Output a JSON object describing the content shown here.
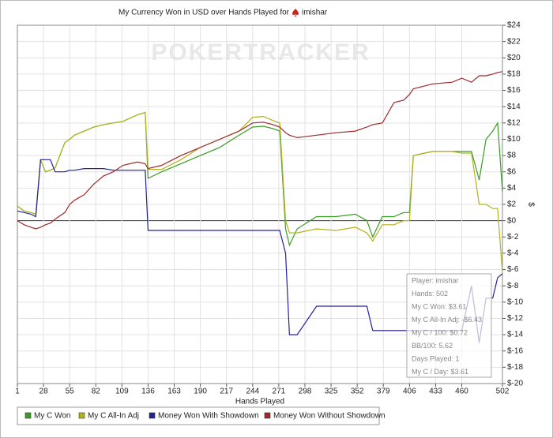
{
  "chart_data": {
    "type": "line",
    "title": "My Currency Won in USD over Hands Played for",
    "title_player": "imishar",
    "watermark": "POKERTRACKER",
    "xlabel": "Hands Played",
    "ylabel": "$",
    "x": [
      1,
      8,
      15,
      20,
      25,
      30,
      35,
      40,
      50,
      55,
      60,
      70,
      80,
      90,
      100,
      110,
      125,
      133,
      136,
      150,
      170,
      190,
      210,
      230,
      244,
      255,
      265,
      272,
      278,
      282,
      290,
      310,
      330,
      350,
      362,
      368,
      378,
      390,
      400,
      406,
      410,
      430,
      450,
      460,
      470,
      478,
      485,
      492,
      497,
      502
    ],
    "series": [
      {
        "name": "My C Won",
        "color": "#3a9d23",
        "values": [
          1.8,
          1.2,
          1.0,
          0.8,
          7.5,
          6.0,
          6.2,
          6.5,
          9.6,
          10,
          10.5,
          11,
          11.5,
          11.8,
          12,
          12.2,
          13,
          13.3,
          5.2,
          6,
          7,
          8,
          9,
          10.5,
          11.5,
          11.6,
          11.3,
          11,
          -1,
          -3,
          -1,
          0.5,
          0.5,
          0.8,
          0,
          -2,
          0.5,
          0.5,
          1,
          1,
          8,
          8.5,
          8.5,
          8.5,
          8.5,
          5,
          10,
          11,
          12,
          3.6
        ]
      },
      {
        "name": "My C All-In Adj",
        "color": "#b3b21a",
        "values": [
          1.8,
          1.2,
          1.0,
          0.8,
          7.5,
          6.0,
          6.2,
          6.5,
          9.6,
          10,
          10.5,
          11,
          11.5,
          11.8,
          12,
          12.2,
          13,
          13.3,
          6.3,
          6.3,
          7.5,
          9,
          10,
          11,
          12.7,
          12.8,
          12.3,
          12,
          0,
          -1.5,
          -1.5,
          -1,
          -1.2,
          -0.8,
          -1.5,
          -2.5,
          -0.5,
          -0.5,
          0,
          0,
          8,
          8.5,
          8.5,
          8.3,
          8.3,
          2,
          2,
          1.5,
          1.5,
          -6.4
        ]
      },
      {
        "name": "Money Won With Showdown",
        "color": "#22229a",
        "values": [
          1.2,
          1,
          0.8,
          0.5,
          7.5,
          7.5,
          7.5,
          6,
          6,
          6.2,
          6.2,
          6.4,
          6.4,
          6.4,
          6.2,
          6.2,
          6.2,
          6.2,
          -1.2,
          -1.2,
          -1.2,
          -1.2,
          -1.2,
          -1.2,
          -1.2,
          -1.2,
          -1.2,
          -1.2,
          -4,
          -14,
          -14,
          -10.5,
          -10.5,
          -10.5,
          -10.5,
          -13.5,
          -13.5,
          -13.5,
          -13.5,
          -13.5,
          -13.5,
          -13.5,
          -13.5,
          -13.5,
          -8,
          -15,
          -9.5,
          -9.5,
          -7,
          -6.5
        ]
      },
      {
        "name": "Money Won Without Showdown",
        "color": "#a02a2a",
        "values": [
          0,
          -0.5,
          -0.8,
          -1,
          -0.8,
          -0.5,
          -0.3,
          0.2,
          1,
          2,
          2.5,
          3.2,
          4.5,
          5.5,
          6,
          6.8,
          7.2,
          7,
          6.4,
          6.8,
          8,
          9,
          10,
          11,
          12,
          12.1,
          11.8,
          11.5,
          10.8,
          10.5,
          10.2,
          10.5,
          10.8,
          11,
          11.5,
          11.8,
          12,
          14.5,
          14.8,
          15.5,
          16.2,
          16.8,
          17,
          17.5,
          17,
          17.8,
          17.8,
          18,
          18.2,
          18.3
        ]
      }
    ],
    "xlim": [
      1,
      502
    ],
    "xticks": [
      1,
      28,
      55,
      82,
      109,
      136,
      163,
      190,
      217,
      244,
      271,
      298,
      325,
      352,
      379,
      406,
      433,
      460,
      502
    ],
    "ylim": [
      -20,
      24
    ],
    "yticks": [
      {
        "value": 24,
        "label": "$24"
      },
      {
        "value": 22,
        "label": "$22"
      },
      {
        "value": 20,
        "label": "$20"
      },
      {
        "value": 18,
        "label": "$18"
      },
      {
        "value": 16,
        "label": "$16"
      },
      {
        "value": 14,
        "label": "$14"
      },
      {
        "value": 12,
        "label": "$12"
      },
      {
        "value": 10,
        "label": "$10"
      },
      {
        "value": 8,
        "label": "$8"
      },
      {
        "value": 6,
        "label": "$6"
      },
      {
        "value": 4,
        "label": "$4"
      },
      {
        "value": 2,
        "label": "$2"
      },
      {
        "value": 0,
        "label": "$0"
      },
      {
        "value": -2,
        "label": "$-2"
      },
      {
        "value": -4,
        "label": "$-4"
      },
      {
        "value": -6,
        "label": "$-6"
      },
      {
        "value": -8,
        "label": "$-8"
      },
      {
        "value": -10,
        "label": "$-10"
      },
      {
        "value": -12,
        "label": "$-12"
      },
      {
        "value": -14,
        "label": "$-14"
      },
      {
        "value": -16,
        "label": "$-16"
      },
      {
        "value": -18,
        "label": "$-18"
      },
      {
        "value": -20,
        "label": "$-20"
      }
    ],
    "grid": true,
    "legend": "bottom",
    "tooltip": [
      "Player: imishar",
      "Hands: 502",
      "My C Won: $3.61",
      "My C All-In Adj: -$6.43",
      "My C / 100: $0.72",
      "BB/100: 5.62",
      "Days Played: 1",
      "My C / Day: $3.61"
    ]
  }
}
